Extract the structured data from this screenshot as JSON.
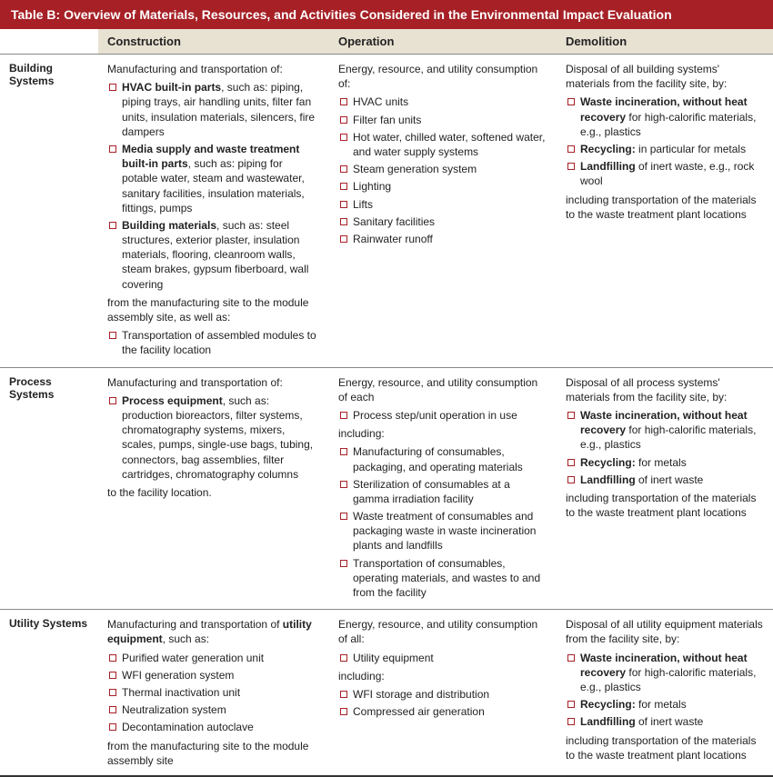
{
  "title": "Table B: Overview of Materials, Resources, and Activities Considered in the Environmental Impact Evaluation",
  "columns": {
    "c1": "Construction",
    "c2": "Operation",
    "c3": "Demolition"
  },
  "rows": {
    "r1": {
      "label": "Building Systems",
      "construction": {
        "lead": "Manufacturing and transportation of:",
        "items": [
          {
            "bold": "HVAC built-in parts",
            "rest": ", such as: piping, piping trays, air handling units, filter fan units, insulation materials, silencers, fire dampers"
          },
          {
            "bold": "Media supply and waste treatment built-in parts",
            "rest": ", such as: piping for potable water, steam and wastewater, sanitary facilities, insulation materials, fittings, pumps"
          },
          {
            "bold": "Building materials",
            "rest": ", such as: steel structures, exterior plaster, insulation materials, flooring, cleanroom walls, steam brakes, gypsum fiberboard, wall covering"
          }
        ],
        "mid": "from the manufacturing site to the module assembly site, as well as:",
        "items2": [
          {
            "text": "Transportation of assembled modules to the facility location"
          }
        ]
      },
      "operation": {
        "lead": "Energy, resource, and utility consumption of:",
        "items": [
          "HVAC units",
          "Filter fan units",
          "Hot water, chilled water, softened water, and water supply systems",
          "Steam generation system",
          "Lighting",
          "Lifts",
          "Sanitary facilities",
          "Rainwater runoff"
        ]
      },
      "demolition": {
        "lead": "Disposal of all building systems' materials from the facility site, by:",
        "items": [
          {
            "bold": "Waste incineration, without heat recovery",
            "rest": " for high-calorific materials, e.g., plastics"
          },
          {
            "bold": "Recycling:",
            "rest": " in particular for metals"
          },
          {
            "bold": "Landfilling",
            "rest": " of inert waste, e.g., rock wool"
          }
        ],
        "trail": "including transportation of the materials to the waste treatment plant locations"
      }
    },
    "r2": {
      "label": "Process Systems",
      "construction": {
        "lead": "Manufacturing and transportation of:",
        "items": [
          {
            "bold": "Process equipment",
            "rest": ", such as: production bioreactors, filter systems, chromatography systems, mixers, scales, pumps, single-use bags, tubing, connectors, bag assemblies, filter cartridges, chromatography columns"
          }
        ],
        "trail": "to the facility location."
      },
      "operation": {
        "lead": "Energy, resource, and utility consumption of each",
        "items1": [
          "Process step/unit operation in use"
        ],
        "mid": "including:",
        "items2": [
          "Manufacturing of consumables, packaging, and operating materials",
          "Sterilization of consumables at a gamma irradiation facility",
          "Waste treatment of consumables and packaging waste in waste incineration plants and landfills",
          "Transportation of consumables, operating materials, and wastes to and from the facility"
        ]
      },
      "demolition": {
        "lead": "Disposal of all process systems' materials from the facility site, by:",
        "items": [
          {
            "bold": "Waste incineration, without heat recovery",
            "rest": " for high-calorific materials, e.g., plastics"
          },
          {
            "bold": "Recycling:",
            "rest": " for metals"
          },
          {
            "bold": "Landfilling",
            "rest": " of inert waste"
          }
        ],
        "trail": "including transportation of the materials to the waste treatment plant locations"
      }
    },
    "r3": {
      "label": "Utility Systems",
      "construction": {
        "lead_pre": "Manufacturing and transportation of ",
        "lead_bold": "utility equipment",
        "lead_post": ", such as:",
        "items": [
          "Purified water generation unit",
          "WFI generation system",
          "Thermal inactivation unit",
          "Neutralization system",
          "Decontamination autoclave"
        ],
        "trail": "from the manufacturing site to the module assembly site"
      },
      "operation": {
        "lead": "Energy, resource, and utility consumption of all:",
        "items1": [
          "Utility equipment"
        ],
        "mid": "including:",
        "items2": [
          "WFI storage and distribution",
          "Compressed air generation"
        ]
      },
      "demolition": {
        "lead": "Disposal of all utility equipment materials from the facility site, by:",
        "items": [
          {
            "bold": "Waste incineration, without heat recovery",
            "rest": " for high-calorific materials, e.g., plastics"
          },
          {
            "bold": "Recycling:",
            "rest": " for metals"
          },
          {
            "bold": "Landfilling",
            "rest": " of inert waste"
          }
        ],
        "trail": "including transportation of the materials to the waste treatment plant locations"
      }
    }
  },
  "colors": {
    "accent": "#a62026",
    "head_bg": "#e8e2d2"
  }
}
